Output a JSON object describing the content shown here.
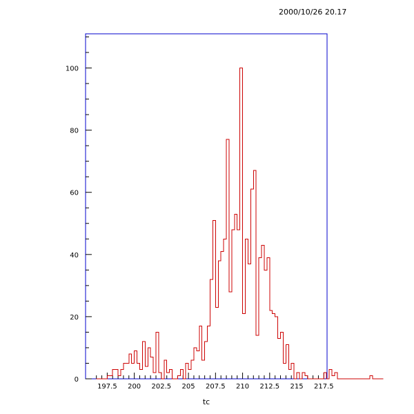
{
  "timestamp": "2000/10/26  20.17",
  "chart_data": {
    "type": "histogram",
    "title": "",
    "xlabel": "tc",
    "ylabel": "",
    "xlim": [
      195.5,
      217.8
    ],
    "ylim": [
      0,
      111
    ],
    "grid": false,
    "legend": "none",
    "x_ticks": [
      {
        "value": 197.5,
        "label": "197.5"
      },
      {
        "value": 200,
        "label": "200"
      },
      {
        "value": 202.5,
        "label": "202.5"
      },
      {
        "value": 205,
        "label": "205"
      },
      {
        "value": 207.5,
        "label": "207.5"
      },
      {
        "value": 210,
        "label": "210"
      },
      {
        "value": 212.5,
        "label": "212.5"
      },
      {
        "value": 215,
        "label": "215"
      },
      {
        "value": 217.5,
        "label": "217.5"
      }
    ],
    "y_ticks": [
      {
        "value": 0,
        "label": "0"
      },
      {
        "value": 20,
        "label": "20"
      },
      {
        "value": 40,
        "label": "40"
      },
      {
        "value": 60,
        "label": "60"
      },
      {
        "value": 80,
        "label": "80"
      },
      {
        "value": 100,
        "label": "100"
      }
    ],
    "bin_start": 196.5,
    "bin_width": 0.25,
    "counts": [
      0,
      0,
      0,
      0,
      1,
      1,
      3,
      3,
      1,
      3,
      5,
      5,
      8,
      5,
      9,
      5,
      3,
      12,
      4,
      10,
      7,
      2,
      15,
      2,
      0,
      6,
      2,
      3,
      0,
      0,
      1,
      3,
      0,
      5,
      3,
      6,
      10,
      9,
      17,
      6,
      12,
      17,
      32,
      51,
      23,
      38,
      41,
      45,
      77,
      28,
      48,
      53,
      48,
      100,
      21,
      45,
      37,
      61,
      67,
      14,
      39,
      43,
      35,
      39,
      22,
      21,
      20,
      13,
      15,
      5,
      11,
      3,
      5,
      0,
      2,
      0,
      2,
      1,
      0,
      0,
      0,
      0,
      0,
      0,
      2,
      0,
      3,
      1,
      2,
      0,
      0,
      0,
      0,
      0,
      0,
      0,
      0,
      0,
      0,
      0,
      0,
      1,
      0,
      0,
      0,
      0
    ],
    "colors": {
      "histogram_line": "#cc0000",
      "frame": "#0000cc",
      "axis": "#000000",
      "background": "#ffffff"
    }
  }
}
